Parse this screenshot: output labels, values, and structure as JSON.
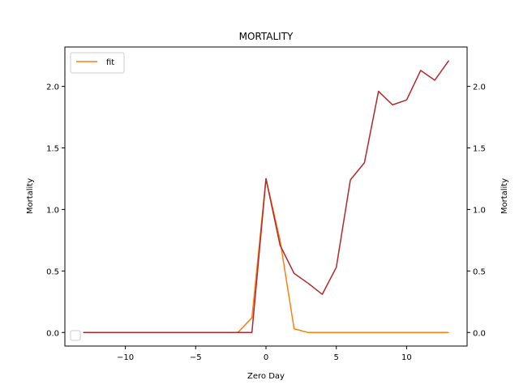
{
  "chart_data": {
    "type": "line",
    "title": "MORTALITY",
    "xlabel": "Zero Day",
    "ylabel": "Mortality",
    "ylabel_right": "Mortality",
    "xlim": [
      -14.3,
      14.3
    ],
    "ylim": [
      -0.11,
      2.32
    ],
    "xticks": [
      -10,
      -5,
      0,
      5,
      10
    ],
    "xtick_labels": [
      "−10",
      "−5",
      "0",
      "5",
      "10"
    ],
    "yticks": [
      0.0,
      0.5,
      1.0,
      1.5,
      2.0
    ],
    "ytick_labels": [
      "0.0",
      "0.5",
      "1.0",
      "1.5",
      "2.0"
    ],
    "grid": false,
    "legend_position": "top-left",
    "series": [
      {
        "name": "fit",
        "color": "#ff7f0e",
        "x": [
          -13,
          -12,
          -11,
          -10,
          -9,
          -8,
          -7,
          -6,
          -5,
          -4,
          -3,
          -2,
          -1,
          0,
          1,
          2,
          3,
          4,
          5,
          6,
          7,
          8,
          9,
          10,
          11,
          12,
          13
        ],
        "y": [
          0,
          0,
          0,
          0,
          0,
          0,
          0,
          0,
          0,
          0,
          0,
          0,
          0.12,
          1.25,
          0.75,
          0.03,
          0,
          0,
          0,
          0,
          0,
          0,
          0,
          0,
          0,
          0,
          0
        ]
      },
      {
        "color": "#b2282b",
        "x": [
          -13,
          -12,
          -11,
          -10,
          -9,
          -8,
          -7,
          -6,
          -5,
          -4,
          -3,
          -2,
          -1,
          0,
          1,
          2,
          3,
          4,
          5,
          6,
          7,
          8,
          9,
          10,
          11,
          12,
          13
        ],
        "y": [
          0,
          0,
          0,
          0,
          0,
          0,
          0,
          0,
          0,
          0,
          0,
          0,
          0,
          1.25,
          0.71,
          0.48,
          0.4,
          0.31,
          0.53,
          1.24,
          1.38,
          1.96,
          1.85,
          1.89,
          2.13,
          2.05,
          2.21
        ]
      }
    ]
  }
}
